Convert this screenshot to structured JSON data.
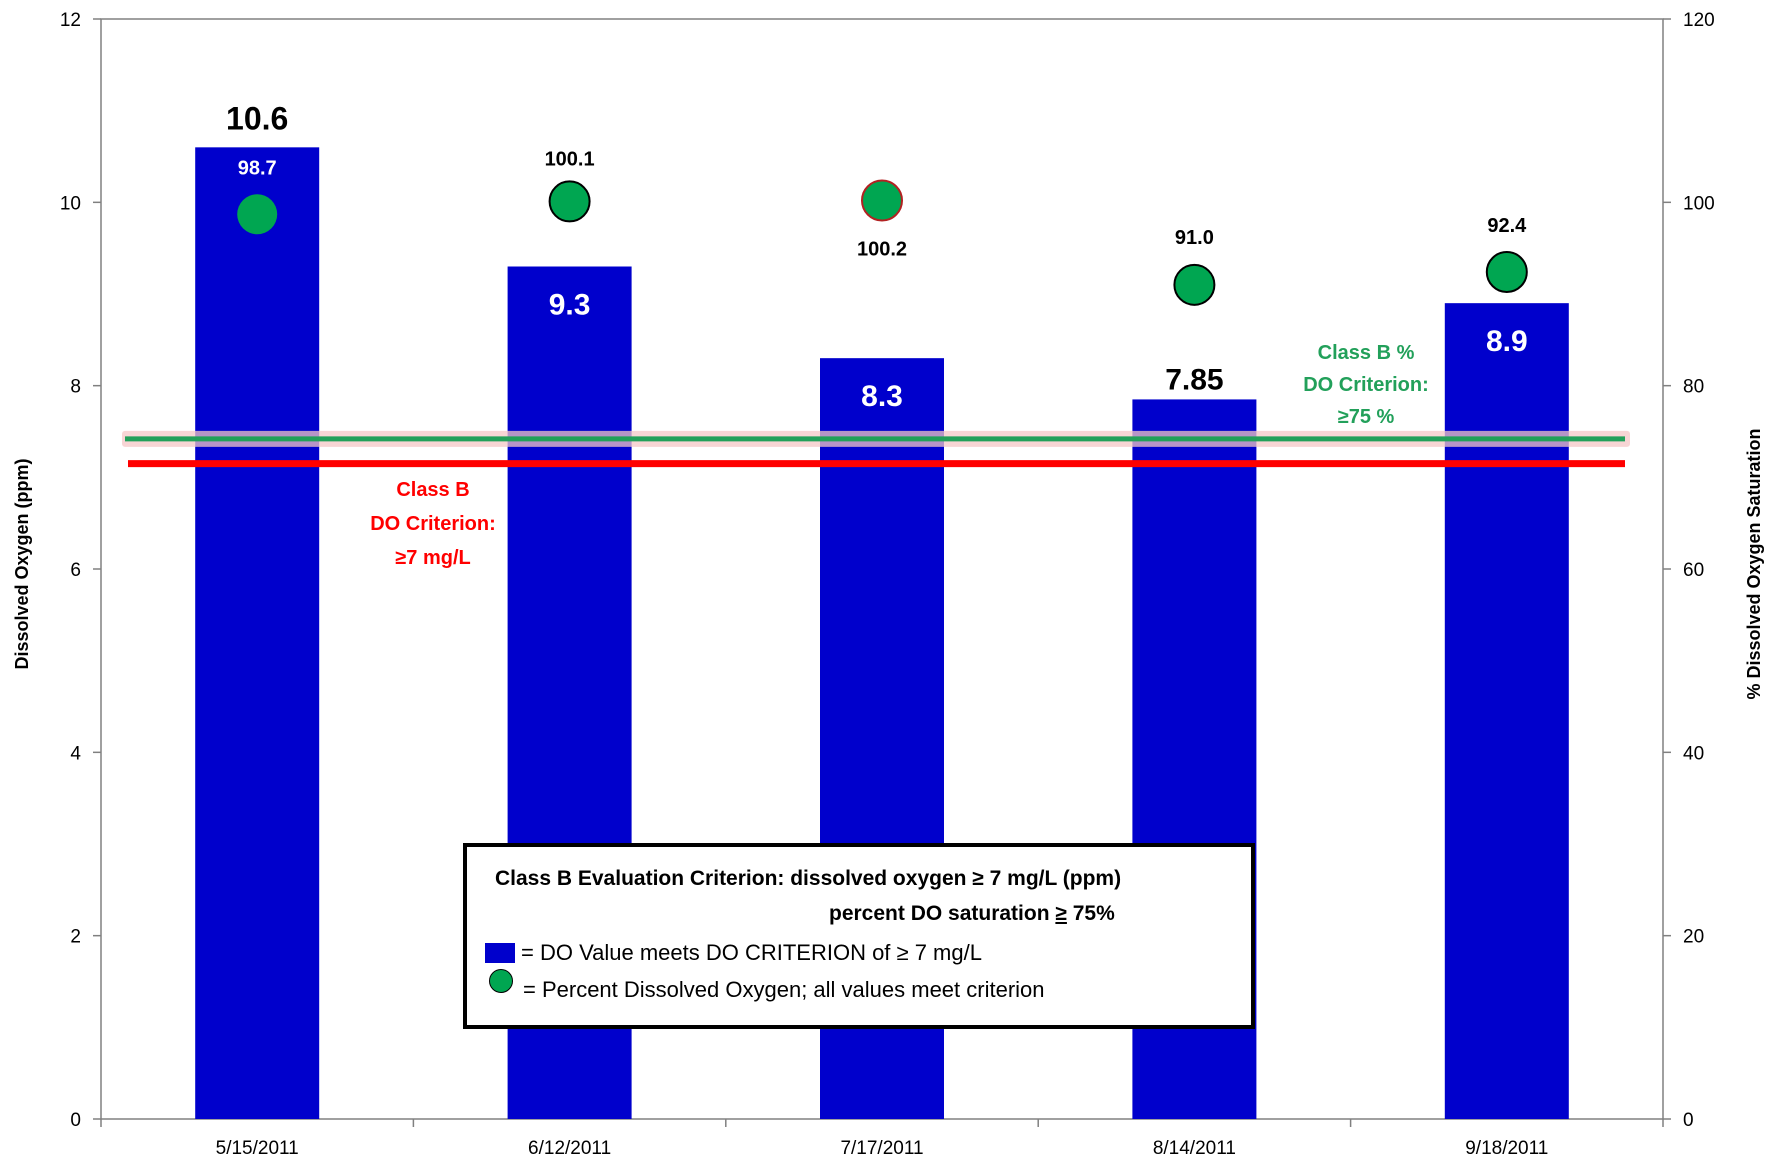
{
  "chart_data": {
    "type": "bar",
    "categories": [
      "5/15/2011",
      "6/12/2011",
      "7/17/2011",
      "8/14/2011",
      "9/18/2011"
    ],
    "series": [
      {
        "values": [
          10.6,
          9.3,
          8.3,
          7.85,
          8.9
        ],
        "labels": [
          "10.6",
          "9.3",
          "8.3",
          "7.85",
          "8.9"
        ],
        "axis": "left",
        "kind": "bar"
      },
      {
        "values": [
          98.7,
          100.1,
          100.2,
          91.0,
          92.4
        ],
        "labels": [
          "98.7",
          "100.1",
          "100.2",
          "91.0",
          "92.4"
        ],
        "axis": "right",
        "kind": "scatter"
      }
    ],
    "ylabel": "Dissolved Oxygen (ppm)",
    "y2label": "% Dissolved Oxygen Saturation",
    "ylim": [
      0,
      12
    ],
    "y2lim": [
      0,
      120
    ],
    "yticks": [
      "0",
      "2",
      "4",
      "6",
      "8",
      "10",
      "12"
    ],
    "y2ticks": [
      "0",
      "20",
      "40",
      "60",
      "80",
      "100",
      "120"
    ],
    "reference_lines": [
      {
        "value": 7.15,
        "axis": "left",
        "color": "#FF0000",
        "label_lines": [
          "Class B",
          "DO Criterion:",
          "≥7 mg/L"
        ]
      },
      {
        "value": 74.2,
        "axis": "right",
        "color": "#22A05A",
        "label_lines": [
          "Class B %",
          "DO Criterion:",
          "≥75 %"
        ]
      }
    ],
    "grid": false,
    "legend": {
      "title": "Class B Evaluation Criterion: dissolved oxygen ≥ 7 mg/L (ppm)",
      "subtitle_prefix": "percent DO saturation ",
      "subtitle_symbol": "≥",
      "subtitle_suffix": " 75%",
      "bar_entry": "= DO Value meets DO CRITERION of ≥ 7 mg/L",
      "dot_entry": "= Percent Dissolved Oxygen; all values meet criterion",
      "placement": "bottom-center"
    }
  },
  "colors": {
    "bar": "#0000CC",
    "dot": "#00A651",
    "criterion_red": "#FF0000",
    "criterion_green": "#22A05A"
  }
}
